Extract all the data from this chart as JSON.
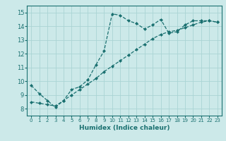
{
  "title": "",
  "xlabel": "Humidex (Indice chaleur)",
  "ylabel": "",
  "bg_color": "#cce9e9",
  "line_color": "#1a7070",
  "grid_color": "#aad4d4",
  "xlim": [
    -0.5,
    23.5
  ],
  "ylim": [
    7.5,
    15.5
  ],
  "xticks": [
    0,
    1,
    2,
    3,
    4,
    5,
    6,
    7,
    8,
    9,
    10,
    11,
    12,
    13,
    14,
    15,
    16,
    17,
    18,
    19,
    20,
    21,
    22,
    23
  ],
  "yticks": [
    8,
    9,
    10,
    11,
    12,
    13,
    14,
    15
  ],
  "curve1_x": [
    0,
    1,
    2,
    3,
    4,
    5,
    6,
    7,
    8,
    9,
    10,
    11,
    12,
    13,
    14,
    15,
    16,
    17,
    18,
    19,
    20,
    21,
    22,
    23
  ],
  "curve1_y": [
    9.7,
    9.1,
    8.6,
    8.1,
    8.6,
    9.4,
    9.6,
    10.1,
    11.2,
    12.2,
    14.9,
    14.8,
    14.4,
    14.2,
    13.8,
    14.1,
    14.5,
    13.5,
    13.6,
    14.1,
    14.4,
    14.4,
    14.4,
    14.3
  ],
  "curve2_x": [
    0,
    1,
    2,
    3,
    4,
    5,
    6,
    7,
    8,
    9,
    10,
    11,
    12,
    13,
    14,
    15,
    16,
    17,
    18,
    19,
    20,
    21,
    22,
    23
  ],
  "curve2_y": [
    8.5,
    8.4,
    8.3,
    8.2,
    8.6,
    9.0,
    9.4,
    9.8,
    10.2,
    10.7,
    11.1,
    11.5,
    11.9,
    12.3,
    12.7,
    13.1,
    13.4,
    13.6,
    13.7,
    13.9,
    14.1,
    14.3,
    14.4,
    14.3
  ]
}
